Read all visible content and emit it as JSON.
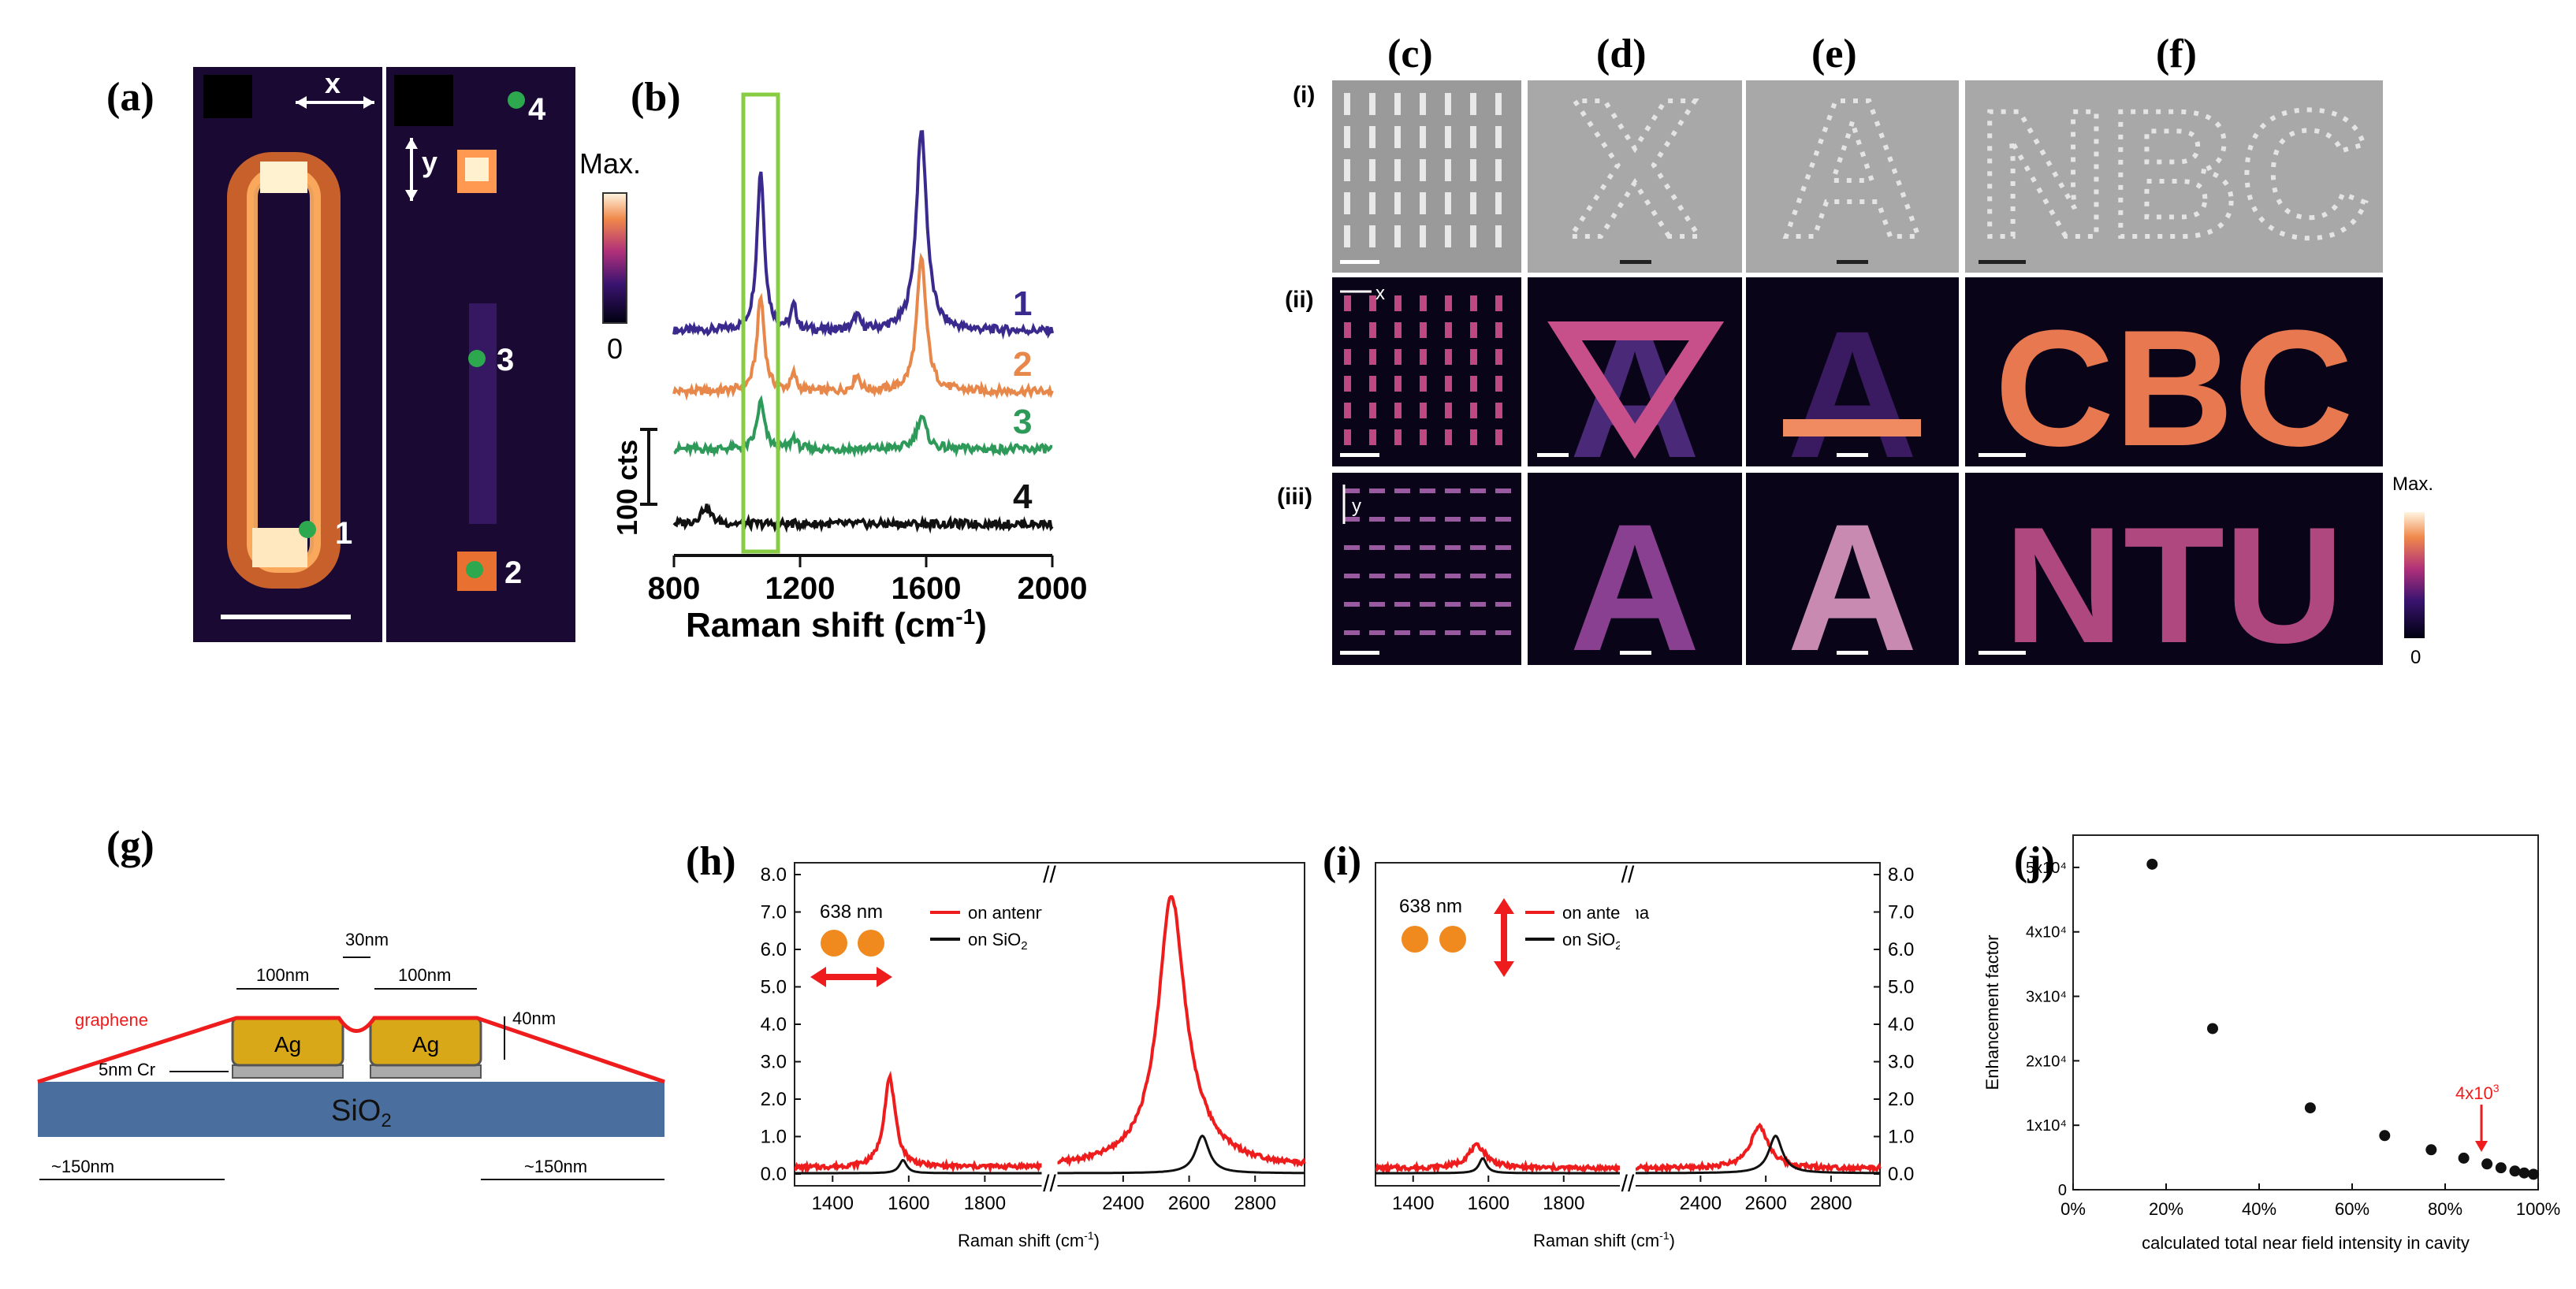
{
  "panels": {
    "a": {
      "label": "(a)",
      "x_arrow": "x",
      "y_arrow": "y",
      "points": [
        "1",
        "2",
        "3",
        "4"
      ]
    },
    "colorbar_b": {
      "max": "Max.",
      "min": "0"
    },
    "b": {
      "label": "(b)",
      "scale_label": "100 cts"
    },
    "c": {
      "label": "(c)"
    },
    "d": {
      "label": "(d)"
    },
    "e": {
      "label": "(e)"
    },
    "f": {
      "label": "(f)"
    },
    "rows": {
      "r1": "(i)",
      "r2": "(ii)",
      "r3": "(iii)"
    },
    "letters": {
      "d1": "X",
      "d2": "A",
      "d3": "A",
      "e1": "A",
      "e2": "A",
      "e3": "A",
      "f1": "NBC",
      "f2": "CBC",
      "f3": "NTU"
    },
    "grid_x": "x",
    "grid_y": "y",
    "colorbar_f": {
      "max": "Max.",
      "min": "0"
    },
    "g": {
      "label": "(g)",
      "graphene": "graphene",
      "ag1": "Ag",
      "ag2": "Ag",
      "dim_100a": "100nm",
      "dim_100b": "100nm",
      "dim_30": "30nm",
      "dim_40": "40nm",
      "cr": "5nm Cr",
      "substrate": "SiO",
      "substrate_sub": "2",
      "left_150": "~150nm",
      "right_150": "~150nm"
    },
    "h": {
      "label": "(h)",
      "laser": "638 nm",
      "legend_red": "on antenna",
      "legend_black": "on SiO",
      "legend_sub": "2",
      "xlabel": "Raman shift (cm",
      "xlabel_sup": "-1",
      "xlabel_end": ")"
    },
    "i": {
      "label": "(i)",
      "laser": "638 nm",
      "legend_red": "on antenna",
      "legend_black": "on SiO",
      "legend_sub": "2",
      "xlabel": "Raman shift (cm",
      "xlabel_sup": "-1",
      "xlabel_end": ")"
    },
    "j": {
      "label": "(j)",
      "annotation": "4x10",
      "annotation_sup": "3"
    }
  },
  "colors": {
    "dark": "#1a0a33",
    "red": "#ee1c1c",
    "purple": "#3a2a8e",
    "orange": "#e8874a",
    "green": "#2e9a5a",
    "peak_box": "#88cc44",
    "orange_dot": "#f08a1e",
    "ag": "#d8a818",
    "sio2": "#4a6f9e",
    "sem_grey": "#9a9a9a"
  },
  "chart_data": [
    {
      "type": "line",
      "title": "",
      "xlabel": "Raman shift (cm-1)",
      "ylabel": "",
      "xlim": [
        800,
        2000
      ],
      "xticks": [
        "800",
        "1200",
        "1600",
        "2000"
      ],
      "highlight_range": [
        1020,
        1130
      ],
      "series": [
        {
          "name": "1",
          "baseline": 3,
          "peaks": [
            [
              1075,
              6.8,
              14
            ],
            [
              1180,
              1.0,
              10
            ],
            [
              1380,
              0.6,
              12
            ],
            [
              1585,
              8.5,
              20
            ]
          ]
        },
        {
          "name": "2",
          "baseline": 2,
          "peaks": [
            [
              1075,
              4.0,
              14
            ],
            [
              1180,
              0.7,
              10
            ],
            [
              1380,
              0.7,
              12
            ],
            [
              1585,
              5.6,
              18
            ]
          ]
        },
        {
          "name": "3",
          "baseline": 1,
          "peaks": [
            [
              1075,
              2.0,
              14
            ],
            [
              1180,
              0.5,
              10
            ],
            [
              1585,
              1.4,
              18
            ]
          ]
        },
        {
          "name": "4",
          "baseline": 0,
          "peaks": [
            [
              900,
              0.7,
              20
            ]
          ]
        }
      ]
    },
    {
      "type": "line",
      "title": "",
      "xlabel": "Raman shift (cm-1)",
      "ylabel": "",
      "ylim": [
        0,
        8
      ],
      "yticks_left": [
        "0.0",
        "1.0",
        "2.0",
        "3.0",
        "4.0",
        "5.0",
        "6.0",
        "7.0",
        "8.0"
      ],
      "xticks": [
        "1400",
        "1600",
        "1800",
        "2400",
        "2600",
        "2800"
      ],
      "series": [
        {
          "name": "on antenna",
          "baseline": 0.15,
          "peaks": [
            [
              1550,
              2.4,
              18
            ],
            [
              2545,
              6.0,
              45
            ],
            [
              2570,
              1.4,
              90
            ]
          ]
        },
        {
          "name": "on SiO2",
          "baseline": 0.02,
          "peaks": [
            [
              1585,
              0.35,
              12
            ],
            [
              2640,
              1.0,
              25
            ]
          ]
        }
      ]
    },
    {
      "type": "line",
      "title": "",
      "xlabel": "Raman shift (cm-1)",
      "ylabel": "",
      "ylim": [
        0,
        8
      ],
      "yticks_right": [
        "0.0",
        "1.0",
        "2.0",
        "3.0",
        "4.0",
        "5.0",
        "6.0",
        "7.0",
        "8.0"
      ],
      "xticks": [
        "1400",
        "1600",
        "1800",
        "2400",
        "2600",
        "2800"
      ],
      "series": [
        {
          "name": "on antenna",
          "baseline": 0.15,
          "peaks": [
            [
              1570,
              0.6,
              30
            ],
            [
              2580,
              1.1,
              35
            ]
          ]
        },
        {
          "name": "on SiO2",
          "baseline": 0.02,
          "peaks": [
            [
              1585,
              0.4,
              12
            ],
            [
              2630,
              1.0,
              25
            ]
          ]
        }
      ]
    },
    {
      "type": "scatter",
      "title": "",
      "xlabel": "calculated total near field intensity in cavity",
      "ylabel": "Enhancement factor",
      "xlim": [
        0,
        100
      ],
      "ylim": [
        0,
        55000
      ],
      "xticks": [
        "0%",
        "20%",
        "40%",
        "60%",
        "80%",
        "100%"
      ],
      "yticks": [
        "0",
        "1x10⁴",
        "2x10⁴",
        "3x10⁴",
        "4x10⁴",
        "5x10⁴"
      ],
      "points": [
        [
          17,
          50500
        ],
        [
          30,
          25000
        ],
        [
          51,
          12700
        ],
        [
          67,
          8400
        ],
        [
          77,
          6200
        ],
        [
          84,
          4900
        ],
        [
          89,
          4000
        ],
        [
          92,
          3400
        ],
        [
          95,
          2900
        ],
        [
          97,
          2600
        ],
        [
          99,
          2400
        ]
      ]
    }
  ]
}
